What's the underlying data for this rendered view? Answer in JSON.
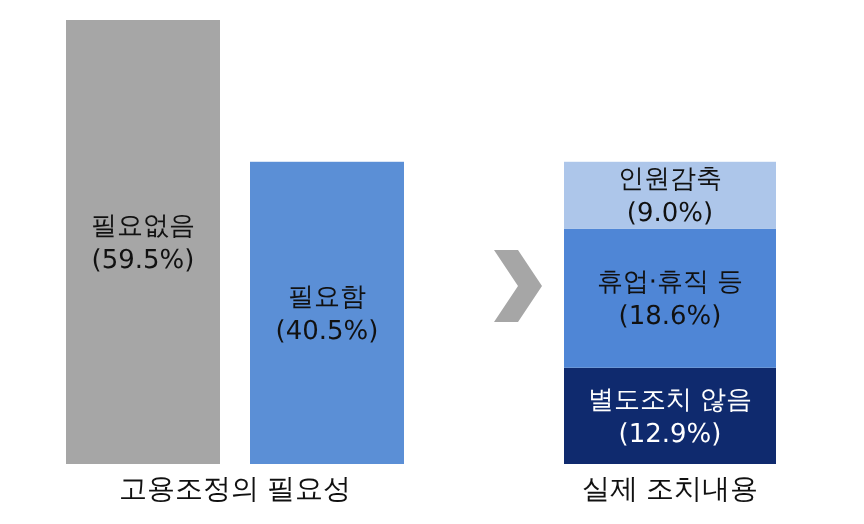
{
  "chart_data": [
    {
      "type": "bar",
      "xlabel": "고용조정의 필요성",
      "categories": [
        "필요없음",
        "필요함"
      ],
      "values": [
        59.5,
        40.5
      ],
      "colors": [
        "#a6a6a6",
        "#5b8fd6"
      ],
      "value_labels": [
        "(59.5%)",
        "(40.5%)"
      ]
    },
    {
      "type": "bar",
      "xlabel": "실제 조치내용",
      "stacked": true,
      "categories": [
        null
      ],
      "series": [
        {
          "name": "별도조치 않음",
          "color": "#0f2a6e",
          "values": [
            12.9
          ],
          "value_labels": [
            "(12.9%)"
          ]
        },
        {
          "name": "휴업·휴직 등",
          "color": "#4f86d6",
          "values": [
            18.6
          ],
          "value_labels": [
            "(18.6%)"
          ]
        },
        {
          "name": "인원감축",
          "color": "#adc6ea",
          "values": [
            9.0
          ],
          "value_labels": [
            "(9.0%)"
          ]
        }
      ]
    }
  ]
}
